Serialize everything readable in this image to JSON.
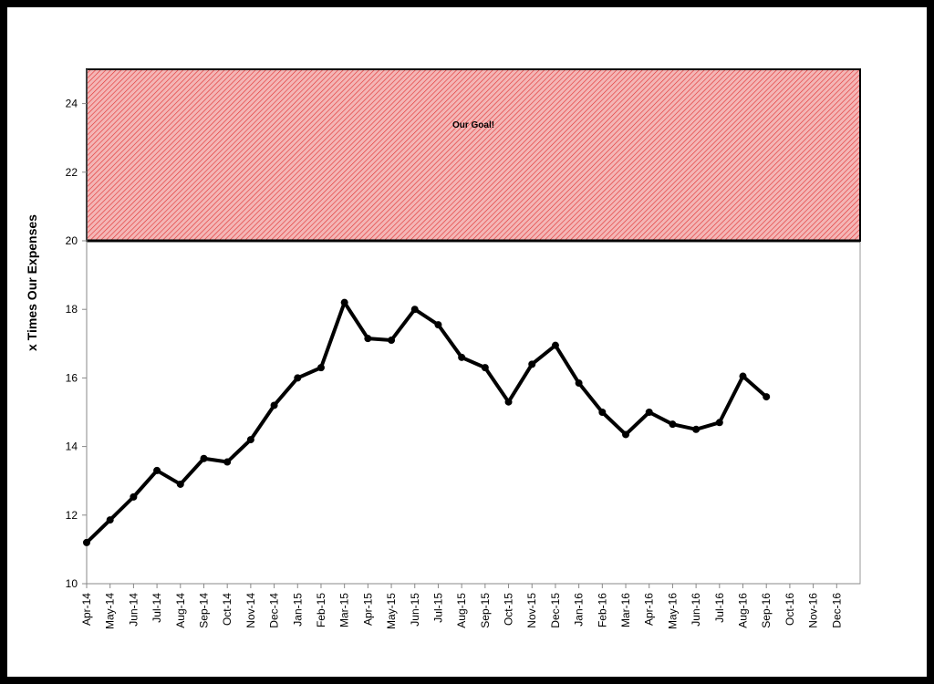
{
  "chart_data": {
    "type": "line",
    "y_label": "x Times Our Expenses",
    "categories": [
      "Apr-14",
      "May-14",
      "Jun-14",
      "Jul-14",
      "Aug-14",
      "Sep-14",
      "Oct-14",
      "Nov-14",
      "Dec-14",
      "Jan-15",
      "Feb-15",
      "Mar-15",
      "Apr-15",
      "May-15",
      "Jun-15",
      "Jul-15",
      "Aug-15",
      "Sep-15",
      "Oct-15",
      "Nov-15",
      "Dec-15",
      "Jan-16",
      "Feb-16",
      "Mar-16",
      "Apr-16",
      "May-16",
      "Jun-16",
      "Jul-16",
      "Aug-16",
      "Sep-16",
      "Oct-16",
      "Nov-16",
      "Dec-16"
    ],
    "values": [
      11.2,
      11.86,
      12.53,
      13.3,
      12.9,
      13.65,
      13.55,
      14.2,
      15.2,
      16.0,
      16.3,
      18.2,
      17.15,
      17.1,
      18.0,
      17.55,
      16.6,
      16.3,
      15.3,
      16.4,
      16.95,
      15.85,
      15.0,
      14.35,
      15.0,
      14.65,
      14.5,
      14.7,
      16.05,
      15.45,
      null,
      null,
      null
    ],
    "color": "#000000",
    "ylim": [
      10,
      25
    ],
    "yticks": [
      10,
      12,
      14,
      16,
      18,
      20,
      22,
      24
    ],
    "goal_band": {
      "from": 20,
      "to": 25,
      "label": "Our Goal!",
      "color": "#f4b6b6",
      "hatch": "#e03030"
    }
  }
}
